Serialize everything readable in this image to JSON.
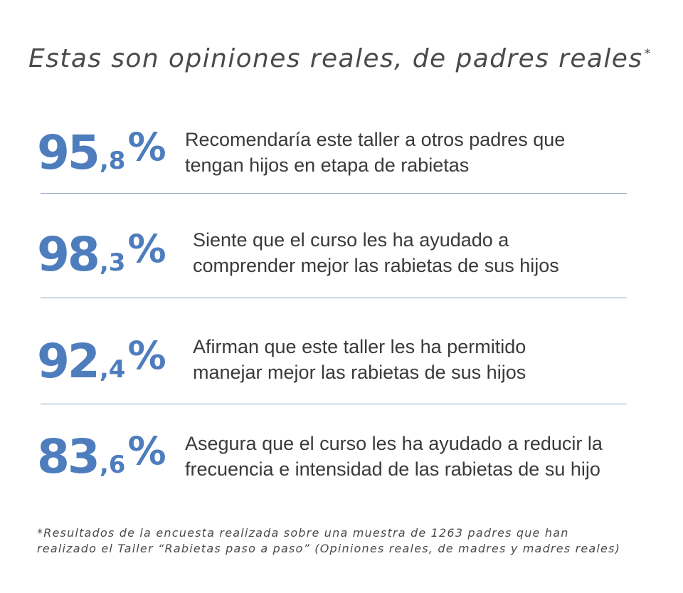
{
  "title": {
    "text": "Estas son opiniones reales, de padres reales",
    "mark": "*"
  },
  "stats": [
    {
      "integer": "95",
      "decimal": ",8",
      "sign": "%",
      "value": 95.8,
      "line1": "Recomendaría este taller a otros padres que",
      "line2": "tengan hijos en etapa de rabietas"
    },
    {
      "integer": "98",
      "decimal": ",3",
      "sign": "%",
      "value": 98.3,
      "line1": "Siente que el curso les ha ayudado a",
      "line2": "comprender mejor las rabietas de sus hijos"
    },
    {
      "integer": "92",
      "decimal": ",4",
      "sign": "%",
      "value": 92.4,
      "line1": "Afirman que este taller les ha permitido",
      "line2": "manejar mejor las rabietas de sus hijos"
    },
    {
      "integer": "83",
      "decimal": ",6",
      "sign": "%",
      "value": 83.6,
      "line1": "Asegura que el curso les ha ayudado a reducir la",
      "line2": "frecuencia e intensidad de las rabietas de su hijo"
    }
  ],
  "footnote": "*Resultados de la encuesta realizada sobre una muestra de 1263 padres que han realizado el Taller “Rabietas paso a paso” (Opiniones reales, de madres y madres reales)",
  "colors": {
    "accent": "#4e7dbd",
    "text": "#3a3a3a",
    "divider": "#8aa3c5"
  }
}
